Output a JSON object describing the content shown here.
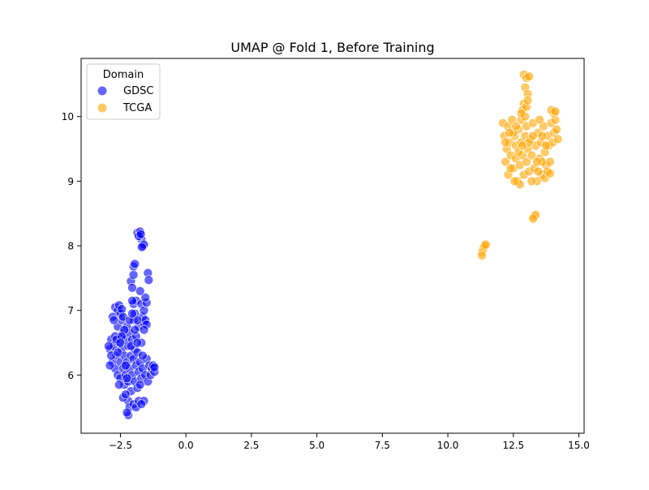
{
  "chart_data": {
    "type": "scatter",
    "title": "UMAP @ Fold 1, Before Training",
    "xlabel": "",
    "ylabel": "",
    "xlim": [
      -4.0,
      15.2
    ],
    "ylim": [
      5.1,
      10.9
    ],
    "xticks": [
      -2.5,
      0.0,
      2.5,
      5.0,
      7.5,
      10.0,
      12.5,
      15.0
    ],
    "xtick_labels": [
      "−2.5",
      "0.0",
      "2.5",
      "5.0",
      "7.5",
      "10.0",
      "12.5",
      "15.0"
    ],
    "yticks": [
      6,
      7,
      8,
      9,
      10
    ],
    "ytick_labels": [
      "6",
      "7",
      "8",
      "9",
      "10"
    ],
    "grid": false,
    "legend": {
      "title": "Domain",
      "position": "top-left",
      "entries": [
        "GDSC",
        "TCGA"
      ]
    },
    "colors": {
      "GDSC": "#0000ff",
      "TCGA": "#ffa500"
    },
    "series": [
      {
        "name": "GDSC",
        "points": [
          [
            -2.9,
            6.4
          ],
          [
            -2.85,
            6.55
          ],
          [
            -2.8,
            6.2
          ],
          [
            -2.75,
            6.45
          ],
          [
            -2.7,
            6.6
          ],
          [
            -2.7,
            6.1
          ],
          [
            -2.65,
            6.3
          ],
          [
            -2.6,
            6.0
          ],
          [
            -2.6,
            6.75
          ],
          [
            -2.55,
            6.5
          ],
          [
            -2.5,
            6.2
          ],
          [
            -2.5,
            5.95
          ],
          [
            -2.45,
            6.85
          ],
          [
            -2.45,
            6.4
          ],
          [
            -2.4,
            6.1
          ],
          [
            -2.4,
            6.65
          ],
          [
            -2.35,
            5.85
          ],
          [
            -2.35,
            6.3
          ],
          [
            -2.3,
            6.55
          ],
          [
            -2.3,
            6.0
          ],
          [
            -2.25,
            6.75
          ],
          [
            -2.25,
            6.2
          ],
          [
            -2.2,
            5.9
          ],
          [
            -2.2,
            6.45
          ],
          [
            -2.15,
            6.1
          ],
          [
            -2.15,
            6.65
          ],
          [
            -2.1,
            6.3
          ],
          [
            -2.1,
            5.75
          ],
          [
            -2.05,
            6.0
          ],
          [
            -2.05,
            6.55
          ],
          [
            -2.0,
            6.25
          ],
          [
            -2.0,
            6.85
          ],
          [
            -1.95,
            5.9
          ],
          [
            -1.95,
            6.4
          ],
          [
            -1.9,
            6.15
          ],
          [
            -1.9,
            6.6
          ],
          [
            -1.85,
            5.8
          ],
          [
            -1.85,
            6.35
          ],
          [
            -1.8,
            6.05
          ],
          [
            -1.8,
            6.75
          ],
          [
            -1.75,
            6.2
          ],
          [
            -1.7,
            5.95
          ],
          [
            -1.7,
            6.5
          ],
          [
            -1.65,
            6.1
          ],
          [
            -1.6,
            6.8
          ],
          [
            -1.55,
            6.0
          ],
          [
            -1.5,
            6.25
          ],
          [
            -1.45,
            5.9
          ],
          [
            -1.4,
            6.15
          ],
          [
            -1.35,
            6.0
          ],
          [
            -1.3,
            6.1
          ],
          [
            -1.25,
            6.15
          ],
          [
            -1.2,
            6.05
          ],
          [
            -1.2,
            6.12
          ],
          [
            -2.7,
            7.05
          ],
          [
            -2.6,
            7.0
          ],
          [
            -2.55,
            7.08
          ],
          [
            -2.5,
            6.95
          ],
          [
            -2.45,
            7.02
          ],
          [
            -2.4,
            6.9
          ],
          [
            -2.8,
            6.9
          ],
          [
            -2.75,
            6.85
          ],
          [
            -2.2,
            5.6
          ],
          [
            -2.15,
            5.5
          ],
          [
            -2.2,
            5.38
          ],
          [
            -2.25,
            5.42
          ],
          [
            -2.0,
            5.55
          ],
          [
            -1.9,
            5.5
          ],
          [
            -1.8,
            5.6
          ],
          [
            -2.4,
            5.65
          ],
          [
            -2.3,
            5.7
          ],
          [
            -1.6,
            5.6
          ],
          [
            -1.7,
            5.55
          ],
          [
            -2.0,
            7.1
          ],
          [
            -1.9,
            7.15
          ],
          [
            -1.7,
            7.1
          ],
          [
            -1.65,
            6.9
          ],
          [
            -1.6,
            7.0
          ],
          [
            -1.55,
            6.85
          ],
          [
            -1.5,
            6.78
          ],
          [
            -1.5,
            7.12
          ],
          [
            -1.55,
            7.2
          ],
          [
            -1.75,
            7.3
          ],
          [
            -2.05,
            7.15
          ],
          [
            -1.95,
            6.95
          ],
          [
            -1.85,
            6.85
          ],
          [
            -1.6,
            6.7
          ],
          [
            -2.1,
            7.45
          ],
          [
            -2.0,
            7.55
          ],
          [
            -2.0,
            7.68
          ],
          [
            -1.95,
            7.72
          ],
          [
            -1.45,
            7.58
          ],
          [
            -1.42,
            7.47
          ],
          [
            -2.05,
            7.35
          ],
          [
            -1.85,
            8.2
          ],
          [
            -1.75,
            8.22
          ],
          [
            -1.7,
            8.1
          ],
          [
            -1.65,
            8.0
          ],
          [
            -1.6,
            8.02
          ],
          [
            -1.8,
            8.15
          ],
          [
            -1.72,
            8.18
          ],
          [
            -1.68,
            7.98
          ],
          [
            -2.9,
            6.15
          ],
          [
            -2.85,
            6.3
          ],
          [
            -2.95,
            6.45
          ],
          [
            -2.65,
            6.55
          ],
          [
            -2.55,
            5.85
          ],
          [
            -2.35,
            6.7
          ],
          [
            -2.15,
            6.85
          ],
          [
            -1.95,
            6.7
          ],
          [
            -2.05,
            6.95
          ],
          [
            -2.45,
            6.6
          ],
          [
            -2.6,
            6.35
          ],
          [
            -2.3,
            6.15
          ],
          [
            -2.1,
            6.45
          ],
          [
            -1.85,
            6.5
          ],
          [
            -1.75,
            5.85
          ],
          [
            -1.65,
            6.3
          ],
          [
            -2.25,
            5.95
          ],
          [
            -2.5,
            6.5
          ]
        ]
      },
      {
        "name": "TCGA",
        "points": [
          [
            12.1,
            9.9
          ],
          [
            12.15,
            9.7
          ],
          [
            12.2,
            9.3
          ],
          [
            12.25,
            9.5
          ],
          [
            12.3,
            9.85
          ],
          [
            12.3,
            9.1
          ],
          [
            12.35,
            9.6
          ],
          [
            12.4,
            9.4
          ],
          [
            12.45,
            9.95
          ],
          [
            12.5,
            9.2
          ],
          [
            12.55,
            9.7
          ],
          [
            12.6,
            9.35
          ],
          [
            12.6,
            9.55
          ],
          [
            12.65,
            9.0
          ],
          [
            12.7,
            9.8
          ],
          [
            12.75,
            9.25
          ],
          [
            12.8,
            9.6
          ],
          [
            12.8,
            9.95
          ],
          [
            12.85,
            9.4
          ],
          [
            12.9,
            9.1
          ],
          [
            12.95,
            9.7
          ],
          [
            13.0,
            9.3
          ],
          [
            13.0,
            9.85
          ],
          [
            13.05,
            9.5
          ],
          [
            13.1,
            9.15
          ],
          [
            13.15,
            9.65
          ],
          [
            13.2,
            9.4
          ],
          [
            13.25,
            9.9
          ],
          [
            13.3,
            9.2
          ],
          [
            13.35,
            9.55
          ],
          [
            13.4,
            9.0
          ],
          [
            13.45,
            9.75
          ],
          [
            13.5,
            9.35
          ],
          [
            13.55,
            9.6
          ],
          [
            13.6,
            9.1
          ],
          [
            13.65,
            9.85
          ],
          [
            13.7,
            9.45
          ],
          [
            13.75,
            9.25
          ],
          [
            13.8,
            9.7
          ],
          [
            13.85,
            9.55
          ],
          [
            13.9,
            9.3
          ],
          [
            13.95,
            9.9
          ],
          [
            14.0,
            9.6
          ],
          [
            14.05,
            9.75
          ],
          [
            14.1,
            9.95
          ],
          [
            14.15,
            9.8
          ],
          [
            14.2,
            9.65
          ],
          [
            14.05,
            10.05
          ],
          [
            13.95,
            10.1
          ],
          [
            14.1,
            10.08
          ],
          [
            13.7,
            9.05
          ],
          [
            13.8,
            9.15
          ],
          [
            13.9,
            9.12
          ],
          [
            13.6,
            9.3
          ],
          [
            12.9,
            10.65
          ],
          [
            13.0,
            10.6
          ],
          [
            13.1,
            10.62
          ],
          [
            12.95,
            10.45
          ],
          [
            13.05,
            10.35
          ],
          [
            12.9,
            10.2
          ],
          [
            12.85,
            10.1
          ],
          [
            13.0,
            10.15
          ],
          [
            12.95,
            10.0
          ],
          [
            12.8,
            10.05
          ],
          [
            13.05,
            10.25
          ],
          [
            13.3,
            8.45
          ],
          [
            13.35,
            8.48
          ],
          [
            13.25,
            8.42
          ],
          [
            11.3,
            7.9
          ],
          [
            11.35,
            7.95
          ],
          [
            11.4,
            8.0
          ],
          [
            11.45,
            8.02
          ],
          [
            11.3,
            7.85
          ],
          [
            12.5,
            9.75
          ],
          [
            12.7,
            9.45
          ],
          [
            12.4,
            9.2
          ],
          [
            12.2,
            9.6
          ],
          [
            12.6,
            9.85
          ],
          [
            13.2,
            9.0
          ],
          [
            13.4,
            9.3
          ],
          [
            13.6,
            9.7
          ],
          [
            13.5,
            9.95
          ],
          [
            12.75,
            8.95
          ],
          [
            13.1,
            9.6
          ],
          [
            12.85,
            9.55
          ],
          [
            12.55,
            9.0
          ],
          [
            13.75,
            9.55
          ],
          [
            13.45,
            9.15
          ],
          [
            12.35,
            9.75
          ],
          [
            13.25,
            9.7
          ]
        ]
      }
    ]
  }
}
